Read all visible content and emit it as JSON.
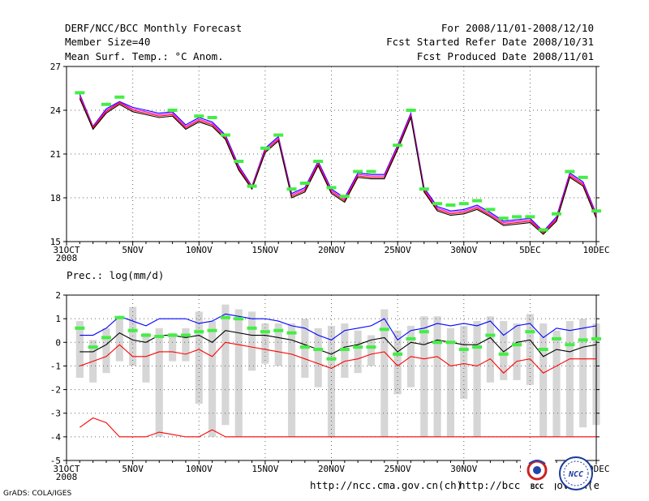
{
  "header": {
    "title": "DERF/NCC/BCC Monthly Forecast",
    "member_size": "Member Size=40",
    "variable": "Mean Surf. Temp.: °C Anom.",
    "period": "For 2008/11/01-2008/12/10",
    "started": "Fcst Started Refer Date 2008/10/31",
    "produced": "Fcst Produced Date 2008/11/01"
  },
  "footer": {
    "url1": "http://ncc.cma.gov.cn(ch)",
    "url2": "http://bcc.cma.gov.cn(en)",
    "grads": "GrADS: COLA/IGES",
    "logo1": "BCC",
    "logo2": "NCC"
  },
  "colors": {
    "blue": "#0000ff",
    "red": "#ff0000",
    "black": "#000000",
    "magenta": "#ff00ff",
    "green": "#44ee44",
    "bar": "#d6d6d6",
    "grid": "#666666"
  },
  "chart_data": [
    {
      "type": "line",
      "title": "Mean Surf. Temp.: °C Anom.",
      "xlabel": "",
      "ylabel": "",
      "x_tick_labels": [
        "31OCT",
        "5NOV",
        "10NOV",
        "15NOV",
        "20NOV",
        "25NOV",
        "30NOV",
        "5DEC",
        "10DEC"
      ],
      "x_tick_days": [
        0,
        5,
        10,
        15,
        20,
        25,
        30,
        35,
        40
      ],
      "year_label": "2008",
      "ylim": [
        15,
        27
      ],
      "yticks": [
        15,
        18,
        21,
        24,
        27
      ],
      "days": [
        1,
        2,
        3,
        4,
        5,
        6,
        7,
        8,
        9,
        10,
        11,
        12,
        13,
        14,
        15,
        16,
        17,
        18,
        19,
        20,
        21,
        22,
        23,
        24,
        25,
        26,
        27,
        28,
        29,
        30,
        31,
        32,
        33,
        34,
        35,
        36,
        37,
        38,
        39,
        40
      ],
      "series": [
        {
          "name": "blue",
          "values": [
            25.1,
            22.9,
            24.1,
            24.6,
            24.2,
            24.0,
            23.8,
            23.9,
            23.0,
            23.5,
            23.2,
            22.3,
            20.2,
            18.8,
            21.4,
            22.2,
            18.3,
            18.7,
            20.5,
            18.6,
            18.0,
            19.7,
            19.6,
            19.6,
            21.6,
            23.8,
            18.7,
            17.4,
            17.1,
            17.2,
            17.5,
            17.0,
            16.4,
            16.5,
            16.6,
            15.7,
            16.7,
            19.7,
            19.1,
            16.9
          ]
        },
        {
          "name": "magenta",
          "values": [
            25.0,
            22.85,
            24.0,
            24.55,
            24.1,
            23.9,
            23.7,
            23.8,
            22.9,
            23.4,
            23.1,
            22.2,
            20.1,
            18.75,
            21.3,
            22.1,
            18.2,
            18.6,
            20.4,
            18.5,
            17.9,
            19.6,
            19.5,
            19.5,
            21.5,
            23.7,
            18.6,
            17.3,
            17.0,
            17.1,
            17.4,
            16.9,
            16.3,
            16.4,
            16.5,
            15.65,
            16.6,
            19.6,
            19.0,
            16.8
          ]
        },
        {
          "name": "red",
          "values": [
            24.9,
            22.8,
            23.9,
            24.5,
            24.0,
            23.8,
            23.6,
            23.7,
            22.8,
            23.3,
            23.0,
            22.1,
            20.0,
            18.7,
            21.2,
            22.0,
            18.1,
            18.5,
            20.3,
            18.4,
            17.8,
            19.5,
            19.4,
            19.4,
            21.4,
            23.6,
            18.5,
            17.2,
            16.9,
            17.0,
            17.3,
            16.8,
            16.2,
            16.3,
            16.4,
            15.6,
            16.5,
            19.5,
            18.9,
            16.7
          ]
        },
        {
          "name": "black",
          "values": [
            24.8,
            22.7,
            23.8,
            24.4,
            23.9,
            23.7,
            23.5,
            23.6,
            22.7,
            23.2,
            22.9,
            22.0,
            19.9,
            18.6,
            21.1,
            21.9,
            18.0,
            18.4,
            20.2,
            18.3,
            17.7,
            19.4,
            19.3,
            19.3,
            21.3,
            23.5,
            18.4,
            17.1,
            16.8,
            16.9,
            17.2,
            16.7,
            16.1,
            16.2,
            16.3,
            15.5,
            16.4,
            19.4,
            18.8,
            16.6
          ]
        }
      ],
      "observed": [
        25.2,
        null,
        24.4,
        24.9,
        null,
        null,
        null,
        24.0,
        null,
        23.6,
        23.5,
        22.3,
        20.5,
        18.8,
        21.4,
        22.3,
        18.6,
        19.0,
        20.5,
        18.7,
        18.1,
        19.8,
        19.8,
        null,
        21.6,
        24.0,
        18.6,
        17.6,
        17.5,
        17.6,
        17.8,
        17.2,
        16.6,
        16.7,
        16.7,
        15.8,
        16.9,
        19.8,
        19.4,
        17.1
      ]
    },
    {
      "type": "line",
      "title": "Prec.: log(mm/d)",
      "xlabel": "",
      "ylabel": "",
      "x_tick_labels": [
        "31OCT",
        "5NOV",
        "10NOV",
        "15NOV",
        "20NOV",
        "25NOV",
        "30NOV",
        "5DEC",
        "10DEC"
      ],
      "x_tick_days": [
        0,
        5,
        10,
        15,
        20,
        25,
        30,
        35,
        40
      ],
      "year_label": "2008",
      "ylim": [
        -5,
        2
      ],
      "yticks": [
        -5,
        -4,
        -3,
        -2,
        -1,
        0,
        1,
        2
      ],
      "days": [
        1,
        2,
        3,
        4,
        5,
        6,
        7,
        8,
        9,
        10,
        11,
        12,
        13,
        14,
        15,
        16,
        17,
        18,
        19,
        20,
        21,
        22,
        23,
        24,
        25,
        26,
        27,
        28,
        29,
        30,
        31,
        32,
        33,
        34,
        35,
        36,
        37,
        38,
        39,
        40
      ],
      "series": [
        {
          "name": "upper",
          "values": [
            0.3,
            0.3,
            0.6,
            1.1,
            0.9,
            0.7,
            1.0,
            1.0,
            1.0,
            0.8,
            0.9,
            1.2,
            1.1,
            1.0,
            1.0,
            0.9,
            0.7,
            0.6,
            0.3,
            0.1,
            0.5,
            0.6,
            0.7,
            1.0,
            0.1,
            0.5,
            0.6,
            0.8,
            0.7,
            0.8,
            0.7,
            0.9,
            0.3,
            0.7,
            0.8,
            0.2,
            0.6,
            0.5,
            0.6,
            0.7
          ]
        },
        {
          "name": "mean",
          "values": [
            -0.4,
            -0.4,
            -0.1,
            0.4,
            0.1,
            0.0,
            0.3,
            0.3,
            0.2,
            0.3,
            0.0,
            0.5,
            0.4,
            0.3,
            0.3,
            0.2,
            0.1,
            -0.1,
            -0.3,
            -0.5,
            -0.2,
            -0.1,
            0.1,
            0.2,
            -0.4,
            0.0,
            -0.1,
            0.1,
            0.0,
            -0.1,
            -0.1,
            0.2,
            -0.4,
            0.0,
            0.1,
            -0.6,
            -0.3,
            -0.4,
            -0.2,
            -0.1
          ]
        },
        {
          "name": "lower",
          "values": [
            -1.0,
            -0.8,
            -0.6,
            -0.1,
            -0.6,
            -0.6,
            -0.4,
            -0.4,
            -0.5,
            -0.3,
            -0.6,
            0.0,
            -0.1,
            -0.2,
            -0.3,
            -0.4,
            -0.5,
            -0.7,
            -0.9,
            -1.1,
            -0.8,
            -0.7,
            -0.5,
            -0.4,
            -1.0,
            -0.6,
            -0.7,
            -0.6,
            -1.0,
            -0.9,
            -1.0,
            -0.7,
            -1.3,
            -0.8,
            -0.7,
            -1.3,
            -1.0,
            -0.7,
            -0.7,
            -0.7
          ]
        },
        {
          "name": "min",
          "values": [
            -3.6,
            -3.2,
            -3.4,
            -4.0,
            -4.0,
            -4.0,
            -3.8,
            -3.9,
            -4.0,
            -4.0,
            -3.7,
            -4.0,
            -4.0,
            -4.0,
            -4.0,
            -4.0,
            -4.0,
            -4.0,
            -4.0,
            -4.0,
            -4.0,
            -4.0,
            -4.0,
            -4.0,
            -4.0,
            -4.0,
            -4.0,
            -4.0,
            -4.0,
            -4.0,
            -4.0,
            -4.0,
            -4.0,
            -4.0,
            -4.0,
            -4.0,
            -4.0,
            -4.0,
            -4.0,
            -4.0
          ]
        }
      ],
      "range_bars": {
        "low": [
          -1.5,
          -1.7,
          -1.3,
          -0.8,
          -1.0,
          -1.7,
          -4,
          -0.8,
          -0.8,
          -2.6,
          -4,
          -3.5,
          -4,
          -1.2,
          -0.9,
          -1.0,
          -4,
          -1.5,
          -1.9,
          -4,
          -1.5,
          -1.3,
          -1.0,
          -4,
          -2.2,
          -1.9,
          -4,
          -4,
          -4,
          -2.4,
          -4,
          -1.7,
          -1.6,
          -1.6,
          -1.8,
          -4,
          -4,
          -4,
          -3.6,
          -3.5
        ],
        "high": [
          0.9,
          0.1,
          0.6,
          1.1,
          1.5,
          0.4,
          0.6,
          0.4,
          0.6,
          1.3,
          0.9,
          1.6,
          1.4,
          1.3,
          0.8,
          0.8,
          0.8,
          1.0,
          0.6,
          0.7,
          0.8,
          0.5,
          0.3,
          1.4,
          0.5,
          0.7,
          1.1,
          1.1,
          0.6,
          0.7,
          0.9,
          1.1,
          0.9,
          0.8,
          1.2,
          0.8,
          0.5,
          0.9,
          1.0,
          0.8
        ]
      },
      "observed": [
        0.6,
        -0.2,
        0.2,
        1.05,
        0.5,
        0.3,
        0.25,
        0.3,
        0.3,
        0.45,
        0.5,
        1.05,
        1.0,
        0.6,
        0.45,
        0.5,
        0.4,
        -0.2,
        -0.3,
        -0.7,
        -0.3,
        -0.2,
        -0.2,
        0.55,
        -0.5,
        0.15,
        0.45,
        0.0,
        0.0,
        -0.3,
        -0.2,
        0.3,
        -0.5,
        -0.1,
        0.45,
        -0.3,
        0.15,
        -0.1,
        0.1,
        0.15
      ]
    }
  ]
}
